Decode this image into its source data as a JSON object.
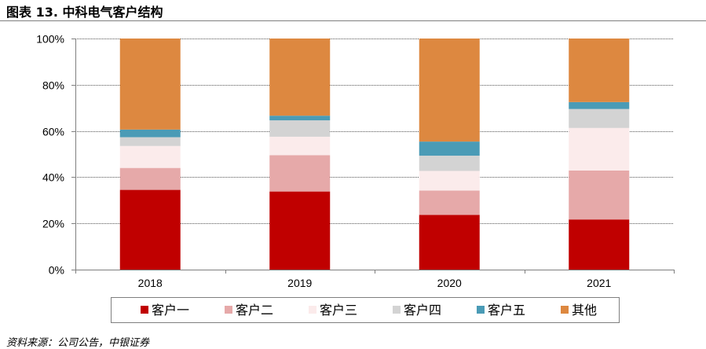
{
  "header": {
    "title": "图表 13. 中科电气客户结构"
  },
  "footer": {
    "source": "资料来源：公司公告，中银证券"
  },
  "colors": {
    "客户一": "#C00000",
    "客户二": "#E6A9A9",
    "客户三": "#FBEBEB",
    "客户四": "#D3D3D3",
    "客户五": "#4A9BB6",
    "其他": "#DD8840"
  },
  "chart_data": {
    "type": "bar",
    "stacked": true,
    "categories": [
      "2018",
      "2019",
      "2020",
      "2021"
    ],
    "series": [
      {
        "name": "客户一",
        "values": [
          34.5,
          33.8,
          23.7,
          21.7
        ]
      },
      {
        "name": "客户二",
        "values": [
          9.5,
          15.7,
          10.5,
          21.2
        ]
      },
      {
        "name": "客户三",
        "values": [
          9.5,
          8.0,
          8.5,
          18.4
        ]
      },
      {
        "name": "客户四",
        "values": [
          3.8,
          7.1,
          6.6,
          8.2
        ]
      },
      {
        "name": "客户五",
        "values": [
          3.3,
          2.0,
          6.1,
          3.0
        ]
      },
      {
        "name": "其他",
        "values": [
          39.4,
          33.4,
          44.6,
          27.5
        ]
      }
    ],
    "ylim": [
      0,
      100
    ],
    "yticks": [
      "0%",
      "20%",
      "40%",
      "60%",
      "80%",
      "100%"
    ],
    "grid": true,
    "legend": "bottom"
  }
}
